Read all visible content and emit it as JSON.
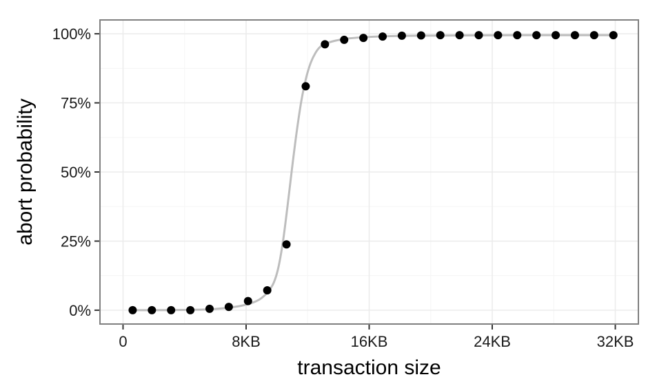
{
  "chart_data": {
    "type": "scatter",
    "xlabel": "transaction size",
    "ylabel": "abort probability",
    "xlim": [
      -1.5,
      33.5
    ],
    "ylim": [
      -0.05,
      1.05
    ],
    "x_ticks": [
      {
        "value": 0,
        "label": "0"
      },
      {
        "value": 8,
        "label": "8KB"
      },
      {
        "value": 16,
        "label": "16KB"
      },
      {
        "value": 24,
        "label": "24KB"
      },
      {
        "value": 32,
        "label": "32KB"
      }
    ],
    "y_ticks": [
      {
        "value": 0,
        "label": "0%"
      },
      {
        "value": 0.25,
        "label": "25%"
      },
      {
        "value": 0.5,
        "label": "50%"
      },
      {
        "value": 0.75,
        "label": "75%"
      },
      {
        "value": 1.0,
        "label": "100%"
      }
    ],
    "grid": true,
    "series": [
      {
        "kind": "points",
        "color": "#000000",
        "x": [
          0.625,
          1.875,
          3.125,
          4.375,
          5.625,
          6.875,
          8.125,
          9.375,
          10.625,
          11.875,
          13.125,
          14.375,
          15.625,
          16.875,
          18.125,
          19.375,
          20.625,
          21.875,
          23.125,
          24.375,
          25.625,
          26.875,
          28.125,
          29.375,
          30.625,
          31.875
        ],
        "y": [
          0.0,
          0.0,
          0.0,
          0.0,
          0.005,
          0.012,
          0.033,
          0.072,
          0.238,
          0.81,
          0.962,
          0.978,
          0.985,
          0.99,
          0.993,
          0.994,
          0.995,
          0.995,
          0.995,
          0.995,
          0.995,
          0.995,
          0.995,
          0.995,
          0.995,
          0.995
        ]
      },
      {
        "kind": "fit-curve",
        "color": "#bdbdbd",
        "x": [
          0.625,
          2,
          4,
          5.5,
          6.5,
          7.5,
          8.3,
          8.9,
          9.4,
          9.8,
          10.1,
          10.4,
          10.7,
          11.0,
          11.3,
          11.6,
          11.9,
          12.2,
          12.5,
          12.8,
          13.2,
          13.8,
          14.5,
          15.5,
          17,
          19,
          22,
          26,
          31.875
        ],
        "y": [
          0.0,
          0.0,
          0.001,
          0.003,
          0.007,
          0.014,
          0.025,
          0.04,
          0.065,
          0.1,
          0.155,
          0.25,
          0.38,
          0.52,
          0.65,
          0.76,
          0.84,
          0.895,
          0.93,
          0.952,
          0.965,
          0.975,
          0.982,
          0.987,
          0.991,
          0.993,
          0.994,
          0.995,
          0.995
        ]
      }
    ]
  },
  "colors": {
    "background": "#ffffff",
    "panel_background": "#ffffff",
    "grid_major": "#ebebeb",
    "grid_minor": "#f5f5f5",
    "panel_border": "#7f7f7f",
    "axis_tick": "#333333"
  }
}
